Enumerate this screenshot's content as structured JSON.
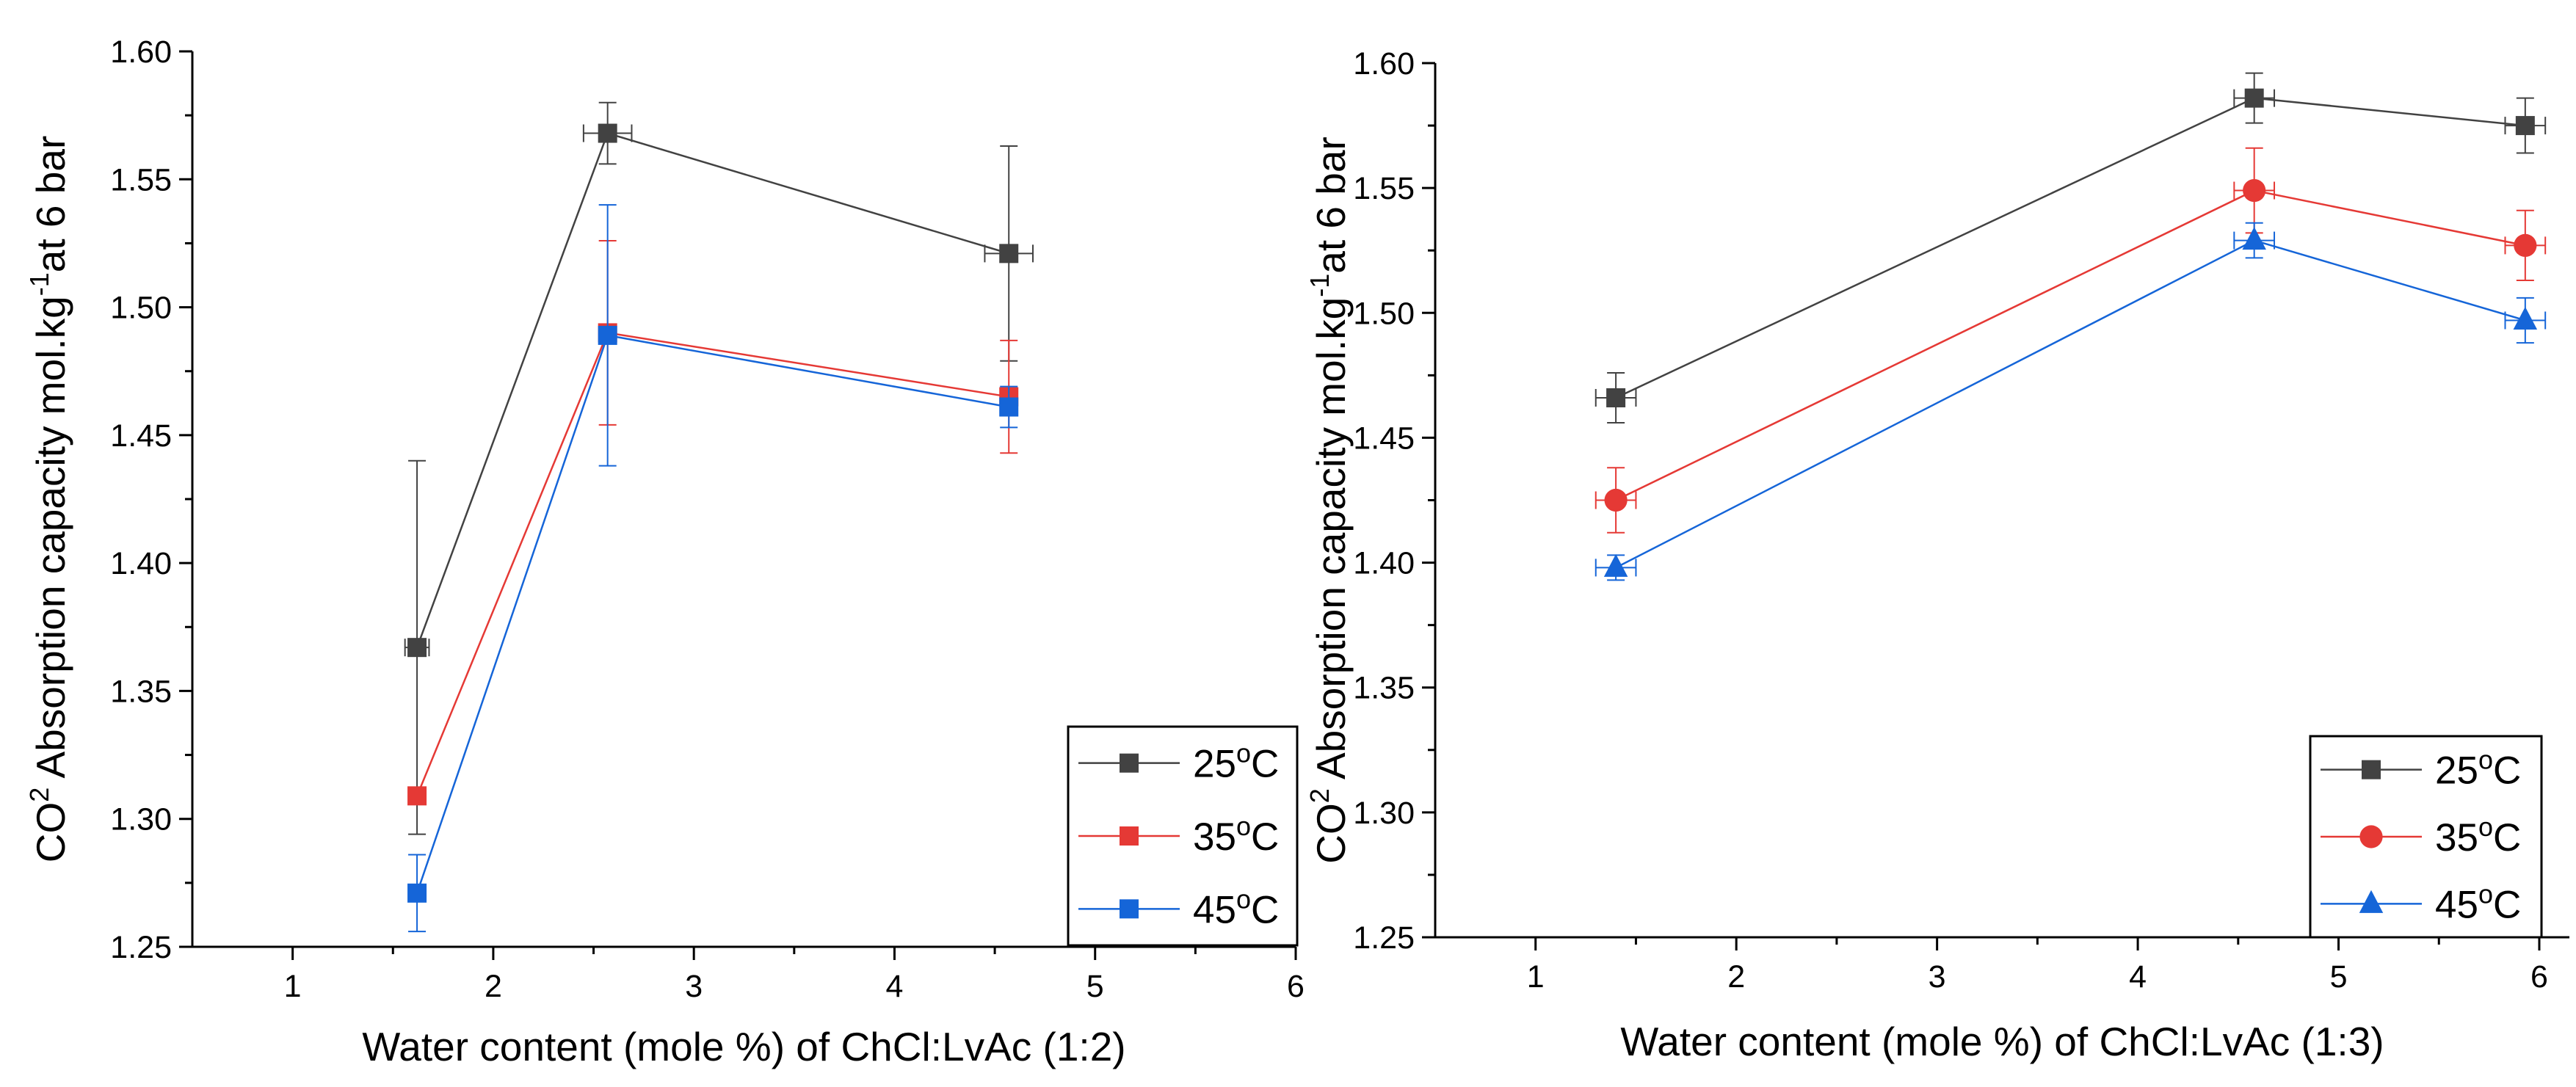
{
  "colors": {
    "black": "#424242",
    "red": "#e53935",
    "blue": "#1565d8"
  },
  "chart_data": [
    {
      "type": "line",
      "xlabel": "Water content (mole %) of ChCl:LvAc (1:2)",
      "ylabel": {
        "base": "CO",
        "sup": "2",
        "rest": " Absorption capacity mol.kg",
        "sup2": "-1",
        "end": "at 6 bar"
      },
      "xlim": [
        0.5,
        6
      ],
      "ylim": [
        1.25,
        1.6
      ],
      "xticks": [
        "1",
        "2",
        "3",
        "4",
        "5",
        "6"
      ],
      "yticks": [
        "1.25",
        "1.30",
        "1.35",
        "1.40",
        "1.45",
        "1.50",
        "1.55",
        "1.60"
      ],
      "legend": {
        "position": "bottom-right"
      },
      "series": [
        {
          "name": "25",
          "unit": "oC",
          "color": "#424242",
          "marker": "square",
          "x": [
            1.62,
            2.57,
            4.57
          ],
          "y": [
            1.367,
            1.568,
            1.521
          ],
          "yerr": [
            0.073,
            0.012,
            0.042
          ],
          "xerr": [
            0.06,
            0.12,
            0.12
          ]
        },
        {
          "name": "35",
          "unit": "oC",
          "color": "#e53935",
          "marker": "square",
          "x": [
            1.62,
            2.57,
            4.57
          ],
          "y": [
            1.309,
            1.49,
            1.465
          ],
          "yerr": [
            0.0,
            0.036,
            0.022
          ],
          "xerr": [
            0.0,
            0.0,
            0.0
          ]
        },
        {
          "name": "45",
          "unit": "oC",
          "color": "#1565d8",
          "marker": "square",
          "x": [
            1.62,
            2.57,
            4.57
          ],
          "y": [
            1.271,
            1.489,
            1.461
          ],
          "yerr": [
            0.015,
            0.051,
            0.008
          ],
          "xerr": [
            0.0,
            0.0,
            0.0
          ]
        }
      ]
    },
    {
      "type": "line",
      "xlabel": "Water content (mole %) of ChCl:LvAc (1:3)",
      "ylabel": {
        "base": "CO",
        "sup": "2",
        "rest": " Absorption capacity mol.kg",
        "sup2": "-1",
        "end": "at 6 bar"
      },
      "xlim": [
        0.5,
        6.15
      ],
      "ylim": [
        1.25,
        1.6
      ],
      "xticks": [
        "1",
        "2",
        "3",
        "4",
        "5",
        "6"
      ],
      "yticks": [
        "1.25",
        "1.30",
        "1.35",
        "1.40",
        "1.45",
        "1.50",
        "1.55",
        "1.60"
      ],
      "legend": {
        "position": "bottom-right"
      },
      "series": [
        {
          "name": "25",
          "unit": "oC",
          "color": "#424242",
          "marker": "square",
          "x": [
            1.4,
            4.58,
            5.93
          ],
          "y": [
            1.466,
            1.586,
            1.575
          ],
          "yerr": [
            0.01,
            0.01,
            0.011
          ],
          "xerr": [
            0.1,
            0.1,
            0.1
          ]
        },
        {
          "name": "35",
          "unit": "oC",
          "color": "#e53935",
          "marker": "circle",
          "x": [
            1.4,
            4.58,
            5.93
          ],
          "y": [
            1.425,
            1.549,
            1.527
          ],
          "yerr": [
            0.013,
            0.017,
            0.014
          ],
          "xerr": [
            0.1,
            0.1,
            0.1
          ]
        },
        {
          "name": "45",
          "unit": "oC",
          "color": "#1565d8",
          "marker": "triangle",
          "x": [
            1.4,
            4.58,
            5.93
          ],
          "y": [
            1.398,
            1.529,
            1.497
          ],
          "yerr": [
            0.005,
            0.007,
            0.009
          ],
          "xerr": [
            0.1,
            0.1,
            0.1
          ]
        }
      ]
    }
  ]
}
